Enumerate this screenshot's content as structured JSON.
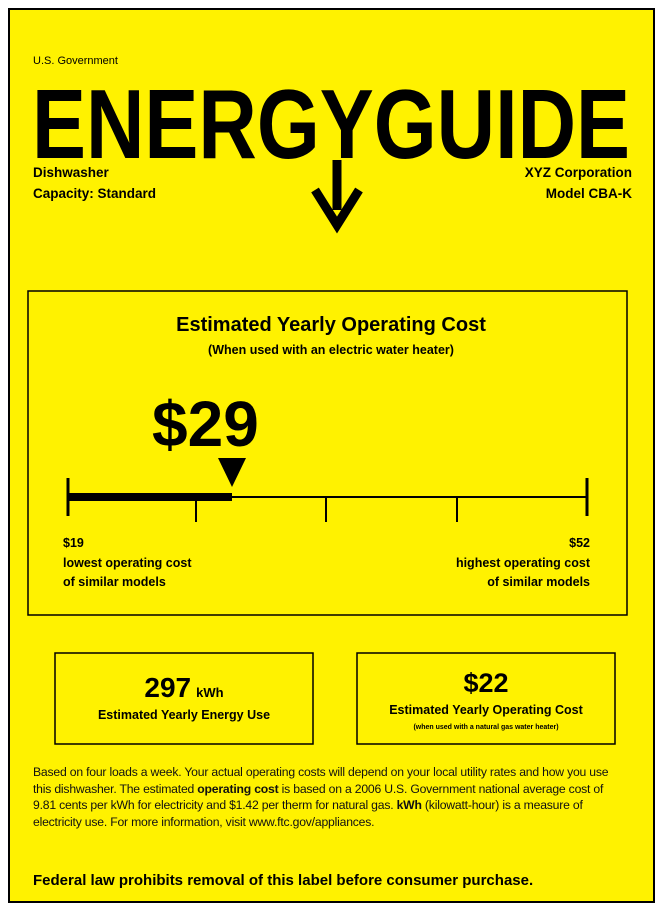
{
  "header": {
    "government": "U.S. Government",
    "title": "ENERGYGUIDE",
    "product": "Dishwasher",
    "capacity": "Capacity: Standard",
    "manufacturer": "XYZ Corporation",
    "model": "Model CBA-K"
  },
  "cost": {
    "title": "Estimated Yearly Operating Cost",
    "subtitle": "(When used with an electric water heater)",
    "value": "$29",
    "low": "$19",
    "low_label": [
      "lowest operating cost",
      "of similar models"
    ],
    "high": "$52",
    "high_label": [
      "highest operating cost",
      "of similar models"
    ]
  },
  "energy": {
    "value": "297",
    "unit": "kWh",
    "label": "Estimated Yearly Energy Use"
  },
  "gas": {
    "value": "$22",
    "label": "Estimated Yearly Operating Cost",
    "sublabel": "(when used with a natural gas water heater)"
  },
  "note": [
    {
      "text": "Based on four loads a week. Your actual operating costs will depend on your local utility rates and how you use this dishwasher. The estimated "
    },
    {
      "text": "operating cost",
      "bold": true
    },
    {
      "text": " is based on a 2006 U.S. Government national average cost of 9.81 cents per kWh for electricity and $1.42 per therm for natural gas. "
    },
    {
      "text": "kWh",
      "bold": true
    },
    {
      "text": " (kilowatt-hour) is a measure of electricity use. For more information, visit www.ftc.gov/appliances."
    }
  ],
  "legal": "Federal law prohibits removal of this label before consumer purchase."
}
